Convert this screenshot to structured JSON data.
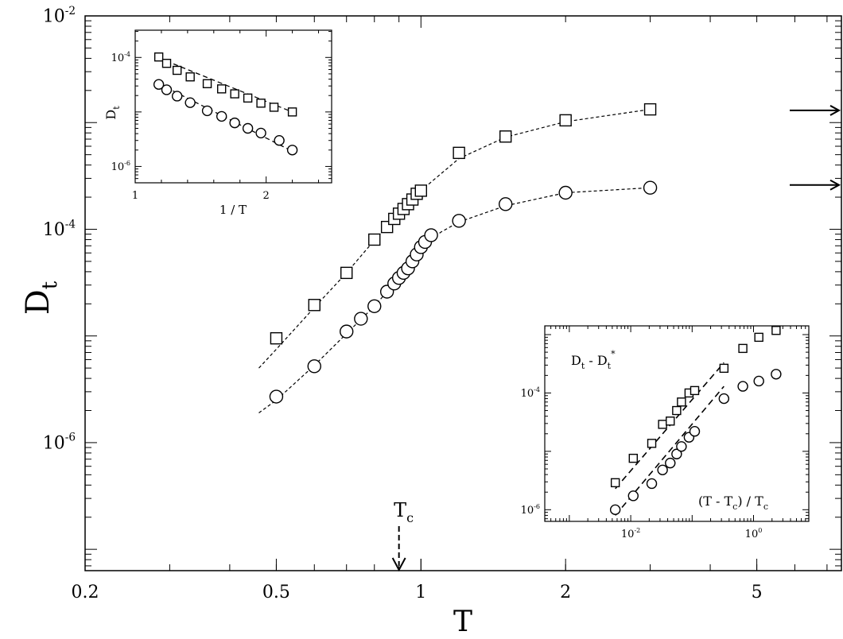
{
  "chart_data": [
    {
      "id": "main",
      "type": "scatter",
      "xlabel": "T",
      "ylabel": "D",
      "ylabel_sub": "t",
      "x_scale": "log",
      "y_scale": "log",
      "xlim": [
        0.2,
        7.5
      ],
      "ylim_exp": [
        -7.2,
        -2
      ],
      "x_ticks": [
        {
          "value": 0.2,
          "label": "0.2"
        },
        {
          "value": 0.5,
          "label": "0.5"
        },
        {
          "value": 1,
          "label": "1"
        },
        {
          "value": 2,
          "label": "2"
        },
        {
          "value": 5,
          "label": "5"
        }
      ],
      "y_ticks": [
        {
          "exp": -6,
          "base": "10",
          "sup": "-6"
        },
        {
          "exp": -4,
          "base": "10",
          "sup": "-4"
        },
        {
          "exp": -2,
          "base": "10",
          "sup": "-2"
        }
      ],
      "annotation": {
        "text": "T",
        "sub": "c",
        "x": 0.9
      },
      "arrows_y": [
        0.0013,
        0.00026
      ],
      "series": [
        {
          "marker": "square",
          "fit": "dashed",
          "points": [
            [
              0.5,
              9.5e-06
            ],
            [
              0.6,
              1.95e-05
            ],
            [
              0.7,
              3.9e-05
            ],
            [
              0.8,
              8e-05
            ],
            [
              0.85,
              0.000105
            ],
            [
              0.88,
              0.000125
            ],
            [
              0.9,
              0.00014
            ],
            [
              0.92,
              0.000155
            ],
            [
              0.94,
              0.000172
            ],
            [
              0.96,
              0.00019
            ],
            [
              0.98,
              0.000215
            ],
            [
              1.0,
              0.00023
            ],
            [
              1.2,
              0.00052
            ],
            [
              1.5,
              0.00074
            ],
            [
              2.0,
              0.00105
            ],
            [
              3.0,
              0.00133
            ]
          ],
          "fit_points": [
            [
              0.46,
              5e-06
            ],
            [
              0.5,
              7.5e-06
            ],
            [
              0.6,
              1.85e-05
            ],
            [
              0.7,
              3.9e-05
            ],
            [
              0.8,
              7.9e-05
            ],
            [
              0.9,
              0.00014
            ],
            [
              1.0,
              0.00023
            ],
            [
              1.2,
              0.00046
            ],
            [
              1.5,
              0.00073
            ],
            [
              2.0,
              0.00102
            ],
            [
              3.0,
              0.00133
            ]
          ]
        },
        {
          "marker": "circle",
          "fit": "dashed",
          "points": [
            [
              0.5,
              2.7e-06
            ],
            [
              0.6,
              5.2e-06
            ],
            [
              0.7,
              1.1e-05
            ],
            [
              0.75,
              1.45e-05
            ],
            [
              0.8,
              1.9e-05
            ],
            [
              0.85,
              2.6e-05
            ],
            [
              0.88,
              3.1e-05
            ],
            [
              0.9,
              3.5e-05
            ],
            [
              0.92,
              3.9e-05
            ],
            [
              0.94,
              4.3e-05
            ],
            [
              0.96,
              5e-05
            ],
            [
              0.98,
              5.8e-05
            ],
            [
              1.0,
              6.8e-05
            ],
            [
              1.02,
              7.6e-05
            ],
            [
              1.05,
              8.8e-05
            ],
            [
              1.2,
              0.00012
            ],
            [
              1.5,
              0.000172
            ],
            [
              2.0,
              0.00022
            ],
            [
              3.0,
              0.000245
            ]
          ],
          "fit_points": [
            [
              0.46,
              1.9e-06
            ],
            [
              0.5,
              2.5e-06
            ],
            [
              0.6,
              5.3e-06
            ],
            [
              0.7,
              1.05e-05
            ],
            [
              0.8,
              1.9e-05
            ],
            [
              0.9,
              3.5e-05
            ],
            [
              1.0,
              6.8e-05
            ],
            [
              1.1,
              9.4e-05
            ],
            [
              1.2,
              0.000117
            ],
            [
              1.5,
              0.000166
            ],
            [
              2.0,
              0.00022
            ],
            [
              3.0,
              0.000245
            ]
          ]
        }
      ]
    },
    {
      "id": "inset-top-left",
      "type": "scatter",
      "xlabel": "1 / T",
      "ylabel": "D",
      "ylabel_sub": "t",
      "x_scale": "linear",
      "y_scale": "log",
      "xlim": [
        1,
        2.5
      ],
      "ylim_exp": [
        -6.3,
        -3.5
      ],
      "x_ticks": [
        {
          "value": 1,
          "label": "1"
        },
        {
          "value": 2,
          "label": "2"
        }
      ],
      "y_ticks": [
        {
          "exp": -6,
          "base": "10",
          "sup": "-6"
        },
        {
          "exp": -4,
          "base": "10",
          "sup": "-4"
        }
      ],
      "series": [
        {
          "marker": "square",
          "fit": "dashed",
          "points": [
            [
              1.18,
              0.000102
            ],
            [
              1.24,
              7.8e-05
            ],
            [
              1.32,
              5.8e-05
            ],
            [
              1.42,
              4.4e-05
            ],
            [
              1.55,
              3.3e-05
            ],
            [
              1.66,
              2.65e-05
            ],
            [
              1.76,
              2.15e-05
            ],
            [
              1.86,
              1.8e-05
            ],
            [
              1.96,
              1.45e-05
            ],
            [
              2.06,
              1.22e-05
            ],
            [
              2.2,
              1e-05
            ]
          ],
          "fit_points": [
            [
              1.18,
              9.8e-05
            ],
            [
              2.2,
              1e-05
            ]
          ]
        },
        {
          "marker": "circle",
          "fit": "dashed",
          "points": [
            [
              1.18,
              3.2e-05
            ],
            [
              1.24,
              2.55e-05
            ],
            [
              1.32,
              1.95e-05
            ],
            [
              1.42,
              1.48e-05
            ],
            [
              1.55,
              1.05e-05
            ],
            [
              1.66,
              8.3e-06
            ],
            [
              1.76,
              6.3e-06
            ],
            [
              1.86,
              5e-06
            ],
            [
              1.96,
              4.1e-06
            ],
            [
              2.1,
              3e-06
            ],
            [
              2.2,
              2e-06
            ]
          ],
          "fit_points": [
            [
              1.18,
              3.3e-05
            ],
            [
              2.2,
              1.9e-06
            ]
          ]
        }
      ]
    },
    {
      "id": "inset-bottom-right",
      "type": "scatter",
      "xlabel": "(T - T",
      "xlabel_sub": "c",
      "xlabel_end": ") / T",
      "xlabel_sub2": "c",
      "ylabel": "D",
      "ylabel_sub": "t",
      "ylabel_mid": " - D",
      "ylabel_sub2": "t",
      "ylabel_sup": "*",
      "x_scale": "log",
      "y_scale": "log",
      "xlim_exp": [
        -3.4,
        0.9
      ],
      "ylim_exp": [
        -6.2,
        -2.85
      ],
      "x_ticks": [
        {
          "exp": -2,
          "base": "10",
          "sup": "-2"
        },
        {
          "exp": 0,
          "base": "10",
          "sup": "0"
        }
      ],
      "y_ticks": [
        {
          "exp": -6,
          "base": "10",
          "sup": "-6"
        },
        {
          "exp": -4,
          "base": "10",
          "sup": "-4"
        }
      ],
      "series": [
        {
          "marker": "square",
          "fit": "dashed",
          "points": [
            [
              0.0056,
              2.9e-06
            ],
            [
              0.011,
              7.6e-06
            ],
            [
              0.022,
              1.37e-05
            ],
            [
              0.033,
              2.9e-05
            ],
            [
              0.044,
              3.3e-05
            ],
            [
              0.056,
              5e-05
            ],
            [
              0.067,
              7e-05
            ],
            [
              0.089,
              0.0001
            ],
            [
              0.11,
              0.00011
            ],
            [
              0.33,
              0.000265
            ],
            [
              0.67,
              0.00058
            ],
            [
              1.22,
              0.0009
            ],
            [
              2.33,
              0.00118
            ]
          ],
          "fit_points": [
            [
              0.0056,
              2.3e-06
            ],
            [
              0.33,
              0.00033
            ]
          ]
        },
        {
          "marker": "circle",
          "fit": "dashed",
          "points": [
            [
              0.0056,
              1e-06
            ],
            [
              0.011,
              1.73e-06
            ],
            [
              0.022,
              2.8e-06
            ],
            [
              0.033,
              4.8e-06
            ],
            [
              0.044,
              6.3e-06
            ],
            [
              0.056,
              9e-06
            ],
            [
              0.067,
              1.21e-05
            ],
            [
              0.089,
              1.74e-05
            ],
            [
              0.11,
              2.2e-05
            ],
            [
              0.33,
              8e-05
            ],
            [
              0.67,
              0.00013
            ],
            [
              1.22,
              0.00016
            ],
            [
              2.33,
              0.00021
            ]
          ],
          "fit_points": [
            [
              0.0056,
              8e-07
            ],
            [
              0.33,
              0.00013
            ]
          ]
        }
      ]
    }
  ]
}
